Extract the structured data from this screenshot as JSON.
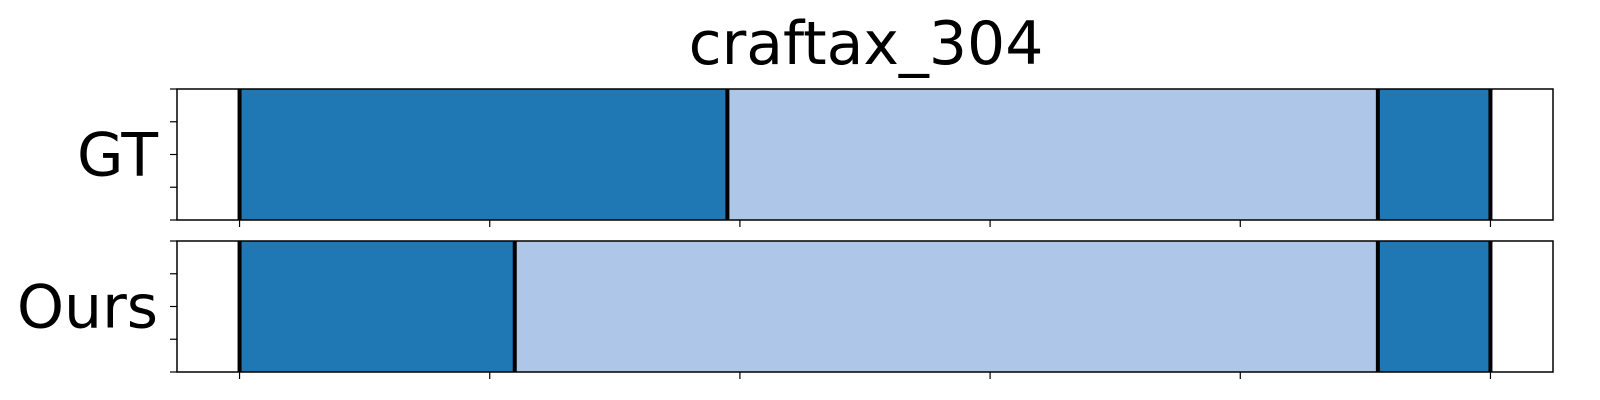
{
  "chart_data": {
    "type": "timeline",
    "title": "craftax_304",
    "rows": [
      {
        "label": "GT",
        "segments": [
          {
            "start": 0.05,
            "end": 0.44,
            "color": "#1f77b4"
          },
          {
            "start": 0.44,
            "end": 0.96,
            "color": "#aec7e8"
          },
          {
            "start": 0.96,
            "end": 1.05,
            "color": "#1f77b4"
          }
        ],
        "boundaries": [
          0.05,
          0.44,
          0.96,
          1.05
        ]
      },
      {
        "label": "Ours",
        "segments": [
          {
            "start": 0.05,
            "end": 0.27,
            "color": "#1f77b4"
          },
          {
            "start": 0.27,
            "end": 0.96,
            "color": "#aec7e8"
          },
          {
            "start": 0.96,
            "end": 1.05,
            "color": "#1f77b4"
          }
        ],
        "boundaries": [
          0.05,
          0.27,
          0.96,
          1.05
        ]
      }
    ],
    "xlim": [
      0,
      1.1
    ],
    "xticks": [
      0.05,
      0.25,
      0.45,
      0.65,
      0.85,
      1.05
    ],
    "show_tick_labels": false,
    "grid": false,
    "legend": "none"
  }
}
